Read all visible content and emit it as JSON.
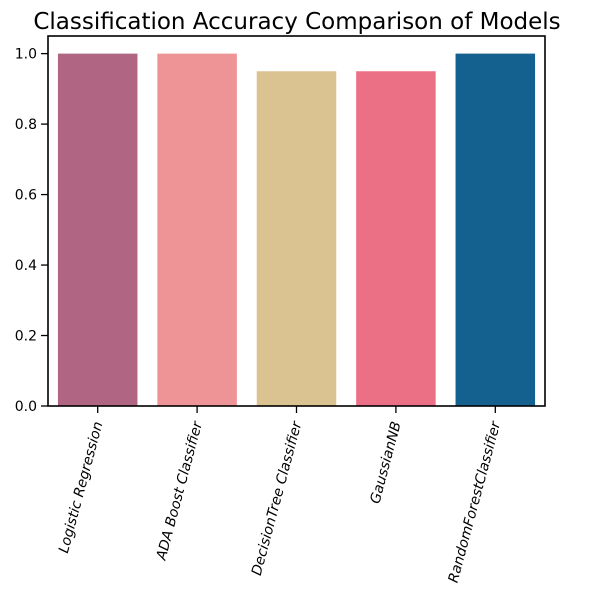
{
  "chart_data": {
    "type": "bar",
    "title": "Classification Accuracy Comparison of Models",
    "xlabel": "",
    "ylabel": "",
    "categories": [
      "Logistic Regression",
      "ADA Boost Classifier",
      "DecisionTree Classifier",
      "GaussianNB",
      "RandomForestClassifier"
    ],
    "values": [
      1.0,
      1.0,
      0.95,
      0.95,
      1.0
    ],
    "colors": [
      "#b06682",
      "#ee9496",
      "#dbc291",
      "#ec7085",
      "#14608f"
    ],
    "ylim": [
      0,
      1.05
    ],
    "yticks": [
      "0.0",
      "0.2",
      "0.4",
      "0.6",
      "0.8",
      "1.0"
    ],
    "grid": false,
    "legend": "none"
  }
}
